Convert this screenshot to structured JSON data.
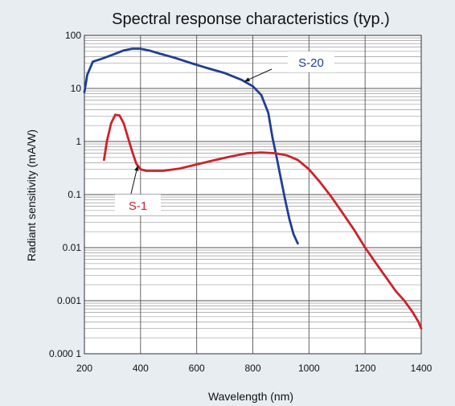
{
  "chart_data": {
    "type": "line",
    "title": "Spectral response characteristics (typ.)",
    "xlabel": "Wavelength (nm)",
    "ylabel": "Radiant sensitivity (mA/W)",
    "xlim": [
      200,
      1400
    ],
    "ylim": [
      0.0001,
      100
    ],
    "yscale": "log",
    "grid": true,
    "x_ticks": [
      200,
      400,
      600,
      800,
      1000,
      1200,
      1400
    ],
    "x_tick_labels": [
      "200",
      "400",
      "600",
      "800",
      "1000",
      "1200",
      "1400"
    ],
    "y_ticks": [
      0.0001,
      0.001,
      0.01,
      0.1,
      1,
      10,
      100
    ],
    "y_tick_labels": [
      "0.000 1",
      "0.001",
      "0.01",
      "0.1",
      "1",
      "10",
      "100"
    ],
    "series": [
      {
        "name": "S-20",
        "color": "#1f3f94",
        "x": [
          200,
          210,
          230,
          260,
          300,
          340,
          370,
          400,
          430,
          470,
          520,
          580,
          640,
          700,
          760,
          800,
          830,
          855,
          870,
          885,
          900,
          915,
          930,
          945,
          960
        ],
        "y": [
          8.5,
          18,
          32,
          36,
          43,
          52,
          56,
          56,
          52,
          45,
          38,
          30,
          24,
          19.5,
          14.5,
          11,
          7.5,
          3.5,
          1.2,
          0.5,
          0.2,
          0.08,
          0.035,
          0.018,
          0.012
        ]
      },
      {
        "name": "S-1",
        "color": "#cc2229",
        "x": [
          270,
          280,
          295,
          310,
          325,
          340,
          355,
          370,
          385,
          400,
          420,
          445,
          480,
          540,
          600,
          660,
          720,
          780,
          830,
          880,
          920,
          960,
          1000,
          1040,
          1080,
          1120,
          1160,
          1200,
          1240,
          1280,
          1310,
          1340,
          1370,
          1390,
          1400
        ],
        "y": [
          0.45,
          1.0,
          2.2,
          3.2,
          3.1,
          2.2,
          1.2,
          0.65,
          0.38,
          0.3,
          0.28,
          0.28,
          0.28,
          0.31,
          0.37,
          0.44,
          0.52,
          0.6,
          0.62,
          0.6,
          0.55,
          0.45,
          0.3,
          0.17,
          0.09,
          0.045,
          0.022,
          0.01,
          0.005,
          0.0025,
          0.0015,
          0.001,
          0.0006,
          0.0004,
          0.0003
        ]
      }
    ],
    "annotations": [
      {
        "text": "S-20",
        "series": "S-20",
        "point_x": 770
      },
      {
        "text": "S-1",
        "series": "S-1",
        "point_x": 390
      }
    ]
  }
}
